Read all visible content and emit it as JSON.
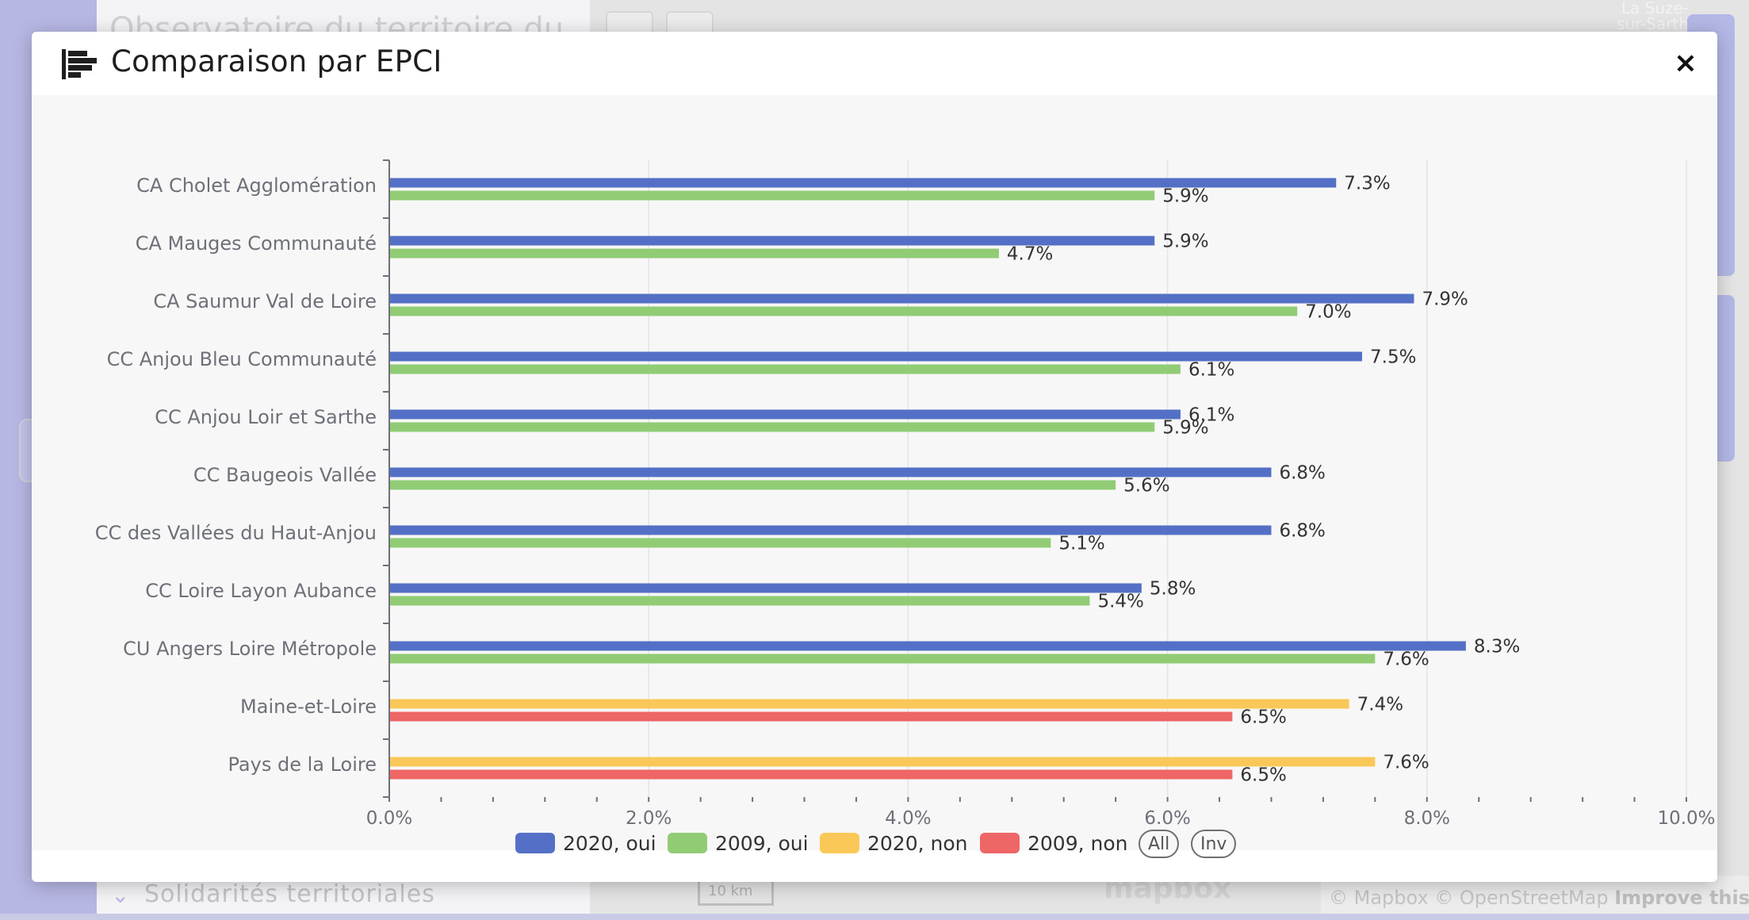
{
  "background": {
    "panel_title": "Observatoire du territoire du",
    "bottom_section": "Solidarités territoriales",
    "map_scale": "10 km",
    "map_logo": "mapbox",
    "town_label": "La Suze-sur-Sarth",
    "attribution": "© Mapbox © OpenStreetMap",
    "attribution_link": "Improve this map"
  },
  "modal": {
    "title": "Comparaison par EPCI",
    "title_icon": "bar-chart-icon",
    "close_label": "×"
  },
  "legend": {
    "all_label": "All",
    "inv_label": "Inv"
  },
  "colors": {
    "2020_oui": "#5470c6",
    "2009_oui": "#91cc75",
    "2020_non": "#fac858",
    "2009_non": "#ee6666"
  },
  "chart_data": {
    "type": "bar",
    "orientation": "horizontal",
    "categories": [
      "CA Cholet Agglomération",
      "CA Mauges Communauté",
      "CA Saumur Val de Loire",
      "CC Anjou Bleu Communauté",
      "CC Anjou Loir et Sarthe",
      "CC Baugeois Vallée",
      "CC des Vallées du Haut-Anjou",
      "CC Loire Layon Aubance",
      "CU Angers Loire Métropole",
      "Maine-et-Loire",
      "Pays de la Loire"
    ],
    "series": [
      {
        "name": "2020, oui",
        "color": "#5470c6",
        "values": [
          7.3,
          5.9,
          7.9,
          7.5,
          6.1,
          6.8,
          6.8,
          5.8,
          8.3,
          null,
          null
        ]
      },
      {
        "name": "2009, oui",
        "color": "#91cc75",
        "values": [
          5.9,
          4.7,
          7.0,
          6.1,
          5.9,
          5.6,
          5.1,
          5.4,
          7.6,
          null,
          null
        ]
      },
      {
        "name": "2020, non",
        "color": "#fac858",
        "values": [
          null,
          null,
          null,
          null,
          null,
          null,
          null,
          null,
          null,
          7.4,
          7.6
        ]
      },
      {
        "name": "2009, non",
        "color": "#ee6666",
        "values": [
          null,
          null,
          null,
          null,
          null,
          null,
          null,
          null,
          null,
          6.5,
          6.5
        ]
      }
    ],
    "xlim": [
      0,
      10
    ],
    "xticks": [
      "0.0%",
      "2.0%",
      "4.0%",
      "6.0%",
      "8.0%",
      "10.0%"
    ],
    "value_suffix": "%",
    "grid": true,
    "legend_position": "bottom"
  }
}
